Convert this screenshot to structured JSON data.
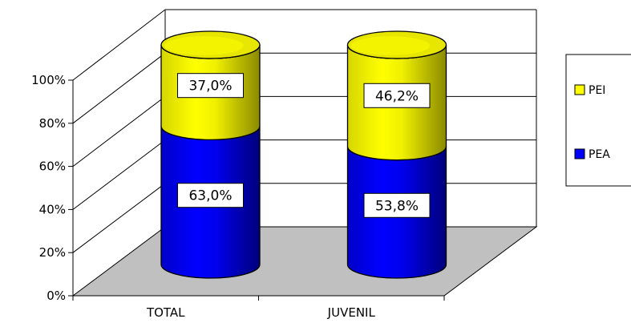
{
  "chart_data": {
    "type": "bar",
    "stacked": true,
    "percent_stacked": true,
    "three_d": true,
    "bar_shape": "cylinder",
    "categories": [
      "TOTAL",
      "JUVENIL"
    ],
    "series": [
      {
        "name": "PEA",
        "values": [
          63.0,
          53.8
        ],
        "labels": [
          "63,0%",
          "53,8%"
        ],
        "color": "#0000FF"
      },
      {
        "name": "PEI",
        "values": [
          37.0,
          46.2
        ],
        "labels": [
          "37,0%",
          "46,2%"
        ],
        "color": "#FFFF00"
      }
    ],
    "y_ticks": [
      "0%",
      "20%",
      "40%",
      "60%",
      "80%",
      "100%"
    ],
    "ylim": [
      0,
      100
    ],
    "grid": true,
    "legend_position": "right",
    "floor_color": "#C0C0C0"
  }
}
